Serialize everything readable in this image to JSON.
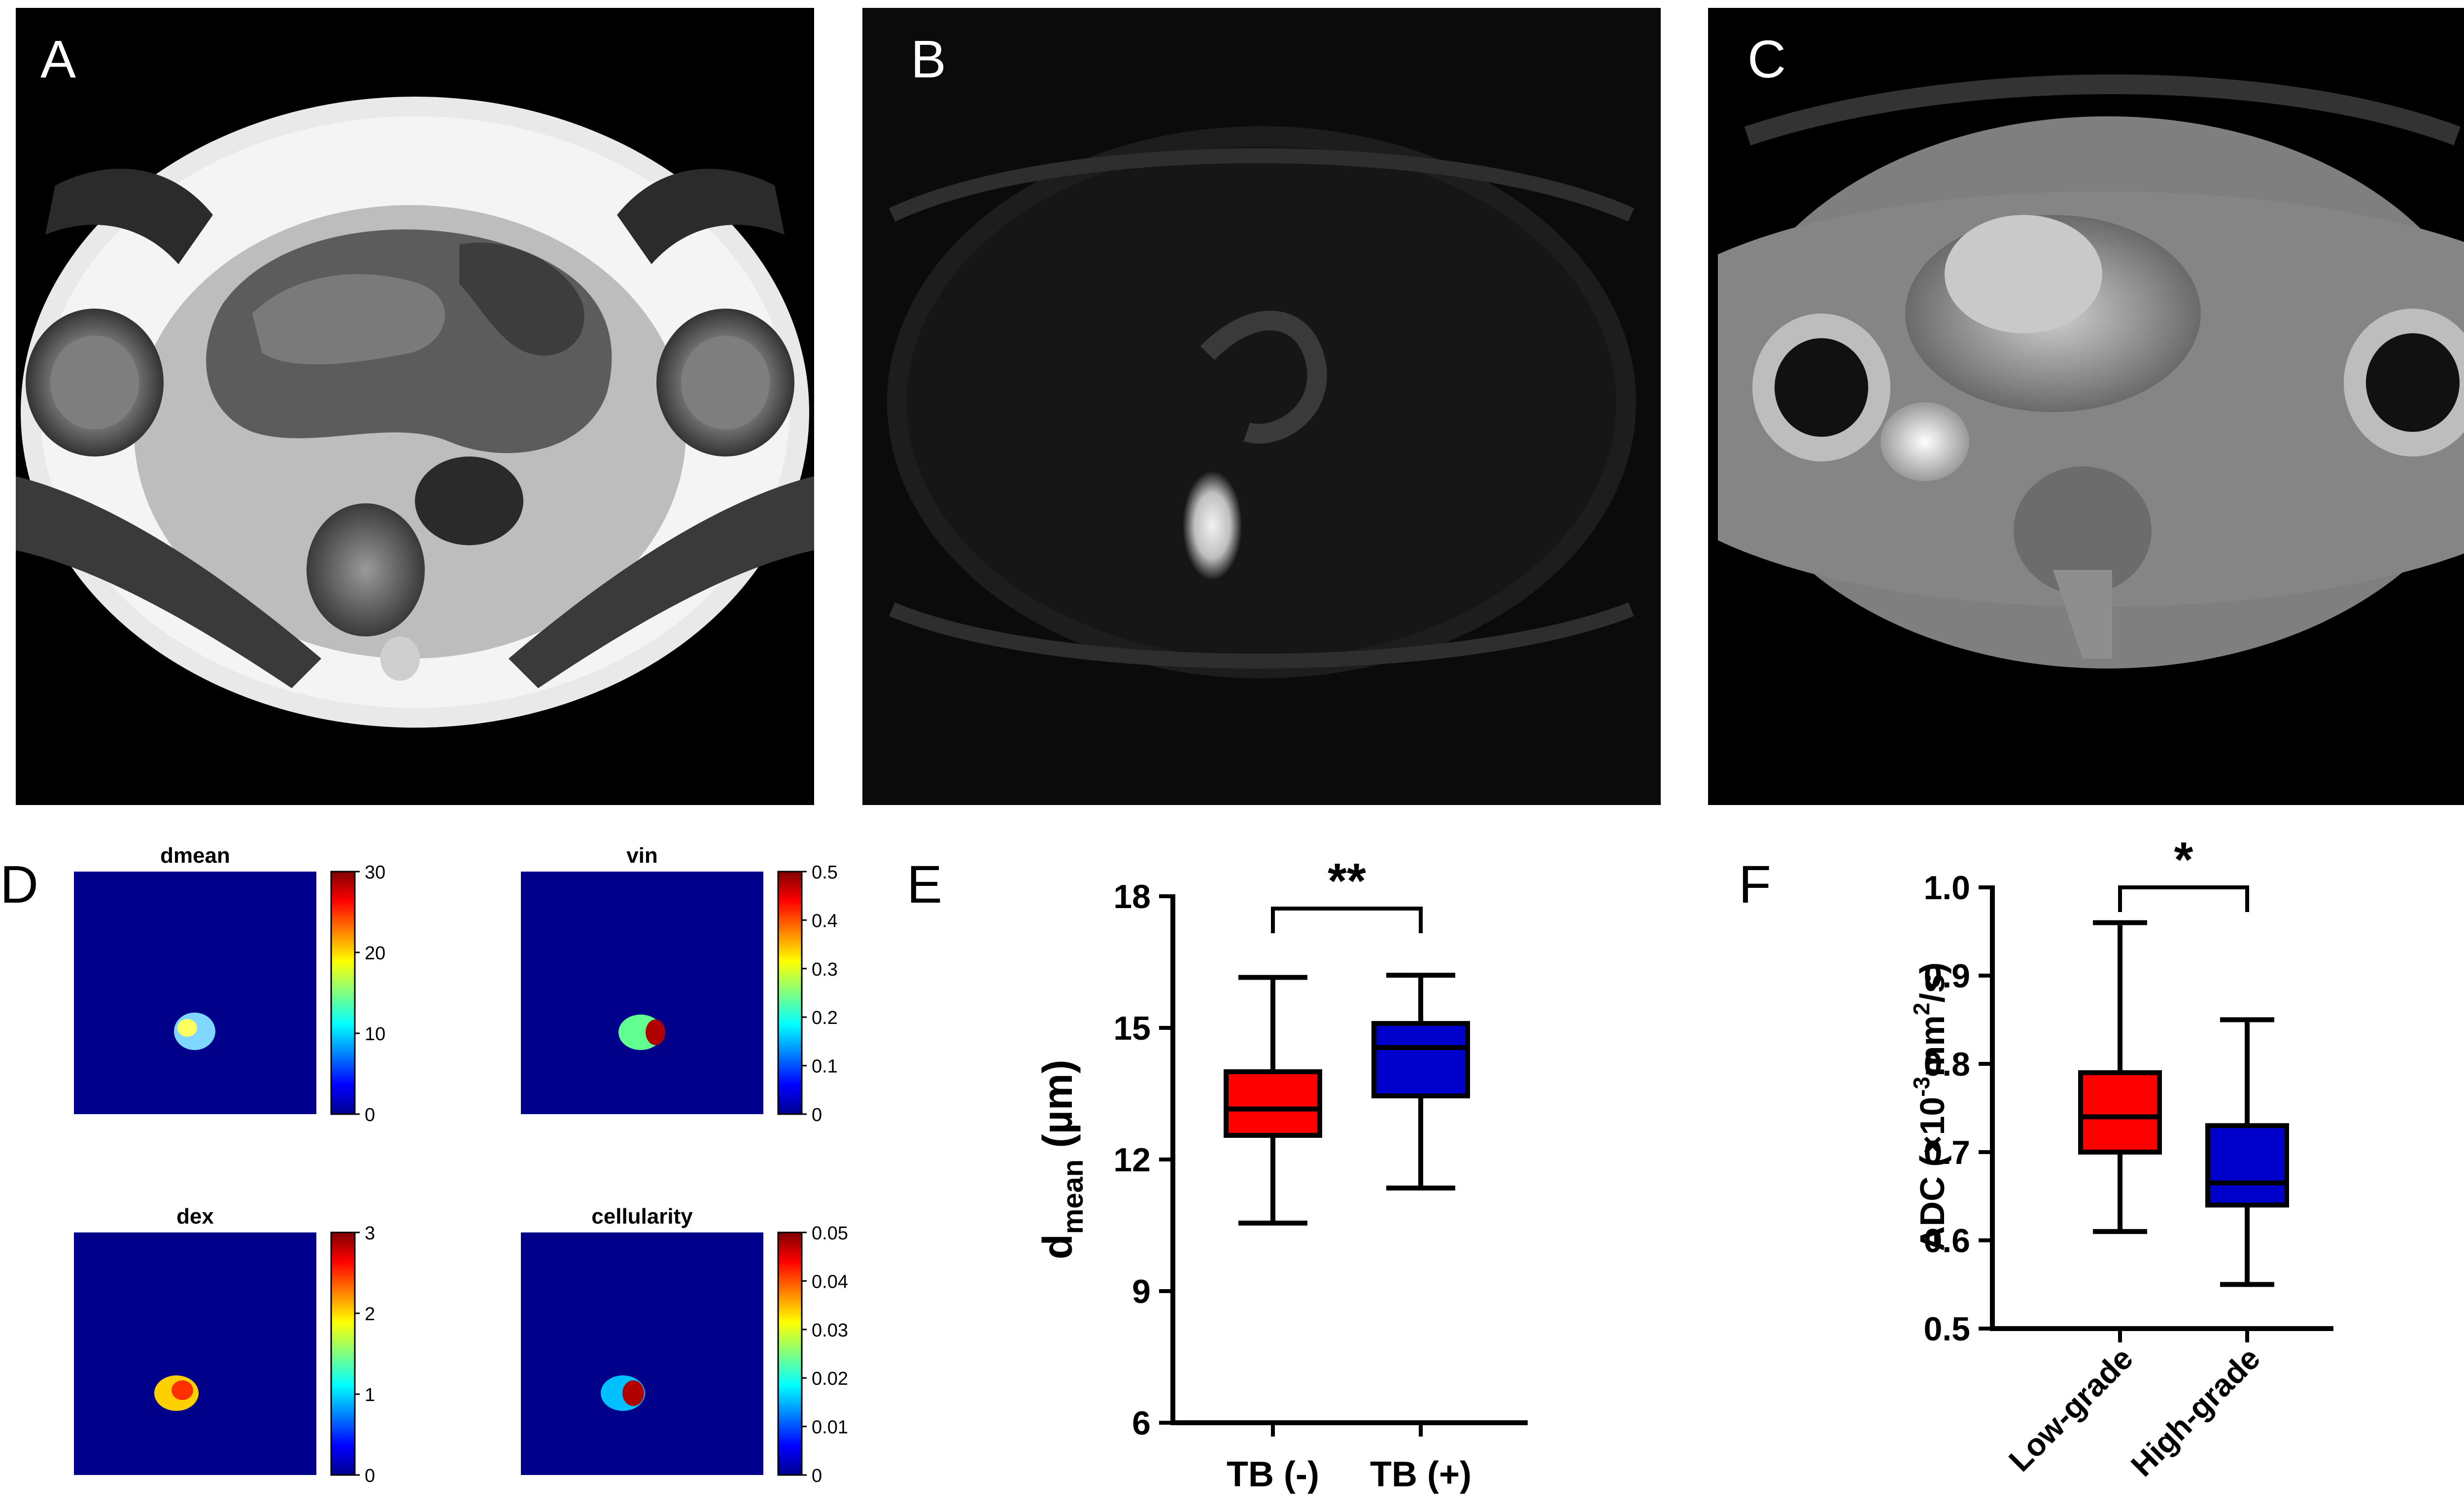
{
  "figure": {
    "panels": {
      "A": {
        "label": "A",
        "kind": "T2-weighted axial pelvic MRI"
      },
      "B": {
        "label": "B",
        "kind": "Diffusion-weighted axial pelvic MRI"
      },
      "C": {
        "label": "C",
        "kind": "ADC map axial pelvic MRI"
      },
      "D": {
        "label": "D"
      },
      "E": {
        "label": "E"
      },
      "F": {
        "label": "F"
      }
    }
  },
  "colors": {
    "red_box": "#ff0000",
    "blue_box": "#0000cc",
    "map_background": "#00008b",
    "axis": "#000000"
  },
  "chart_data": [
    {
      "type": "heatmap",
      "panel": "D",
      "maps": [
        {
          "title": "dmean",
          "colorbar_ticks": [
            "30",
            "20",
            "10",
            "0"
          ],
          "range": [
            0,
            30
          ]
        },
        {
          "title": "vin",
          "colorbar_ticks": [
            "0.5",
            "0.4",
            "0.3",
            "0.2",
            "0.1",
            "0"
          ],
          "range": [
            0,
            0.5
          ]
        },
        {
          "title": "dex",
          "colorbar_ticks": [
            "3",
            "2",
            "1",
            "0"
          ],
          "range": [
            0,
            3
          ]
        },
        {
          "title": "cellularity",
          "colorbar_ticks": [
            "0.05",
            "0.04",
            "0.03",
            "0.02",
            "0.01",
            "0"
          ],
          "range": [
            0,
            0.05
          ]
        }
      ],
      "colormap": "jet"
    },
    {
      "type": "box",
      "panel": "E",
      "categories": [
        "TB (-)",
        "TB (+)"
      ],
      "series": [
        {
          "name": "TB (-)",
          "color": "#ff0000",
          "min": 10.55,
          "q1": 12.55,
          "median": 13.15,
          "q3": 14.0,
          "max": 16.15
        },
        {
          "name": "TB (+)",
          "color": "#0000cc",
          "min": 11.35,
          "q1": 13.45,
          "median": 14.55,
          "q3": 15.1,
          "max": 16.2
        }
      ],
      "ylabel_main": "d",
      "ylabel_sub": "mean",
      "ylabel_unit": " (µm)",
      "ylim": [
        6,
        18
      ],
      "yticks": [
        "6",
        "9",
        "12",
        "15",
        "18"
      ],
      "significance": "**"
    },
    {
      "type": "box",
      "panel": "F",
      "categories": [
        "Low-grade",
        "High-grade"
      ],
      "series": [
        {
          "name": "Low-grade",
          "color": "#ff0000",
          "min": 0.61,
          "q1": 0.7,
          "median": 0.74,
          "q3": 0.79,
          "max": 0.96
        },
        {
          "name": "High-grade",
          "color": "#0000cc",
          "min": 0.55,
          "q1": 0.64,
          "median": 0.665,
          "q3": 0.73,
          "max": 0.85
        }
      ],
      "ylabel_prefix": "ADC (×10",
      "ylabel_exp": "-3",
      "ylabel_mid": "mm",
      "ylabel_exp2": "2",
      "ylabel_suffix": "/s)",
      "ylim": [
        0.5,
        1.0
      ],
      "yticks": [
        "0.5",
        "0.6",
        "0.7",
        "0.8",
        "0.9",
        "1.0"
      ],
      "significance": "*"
    }
  ]
}
